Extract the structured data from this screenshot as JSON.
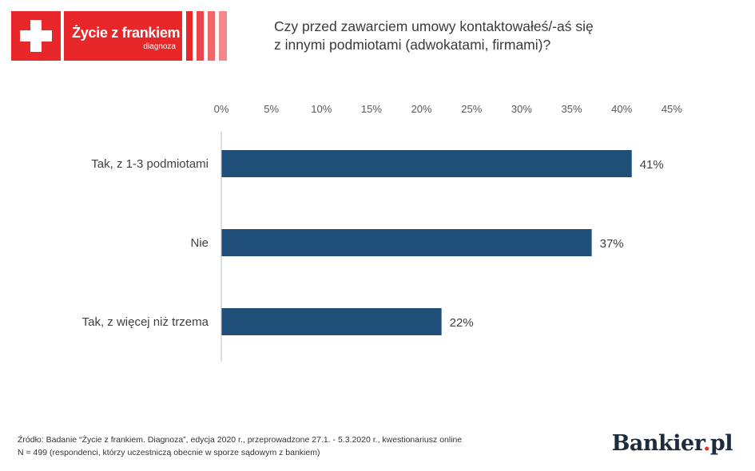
{
  "logo": {
    "name": "Życie z frankiem",
    "subtitle": "diagnoza",
    "cross_icon": "swiss-cross-icon",
    "color": "#e8272a"
  },
  "title_lines": [
    "Czy przed zawarciem umowy kontaktowałeś/-aś się",
    "z innymi podmiotami (adwokatami, firmami)?"
  ],
  "chart_data": {
    "type": "bar",
    "orientation": "horizontal",
    "categories": [
      "Tak, z 1-3 podmiotami",
      "Nie",
      "Tak, z więcej niż trzema"
    ],
    "values": [
      41,
      37,
      22
    ],
    "value_labels": [
      "41%",
      "37%",
      "22%"
    ],
    "xlim": [
      0,
      45
    ],
    "x_ticks": [
      0,
      5,
      10,
      15,
      20,
      25,
      30,
      35,
      40,
      45
    ],
    "x_tick_labels": [
      "0%",
      "5%",
      "10%",
      "15%",
      "20%",
      "25%",
      "30%",
      "35%",
      "40%",
      "45%"
    ],
    "x_axis_position": "top",
    "grid": false,
    "bar_color": "#1f4e79"
  },
  "source": {
    "line1": "Źródło: Badanie “Życie z frankiem. Diagnoza”, edycja 2020 r., przeprowadzone 27.1. - 5.3.2020 r., kwestionariusz online",
    "line2": "N = 499 (respondenci, którzy uczestniczą obecnie w sporze sądowym z bankiem)"
  },
  "brand": {
    "name_main": "Bankier",
    "name_dot": ".",
    "name_tld": "pl"
  }
}
